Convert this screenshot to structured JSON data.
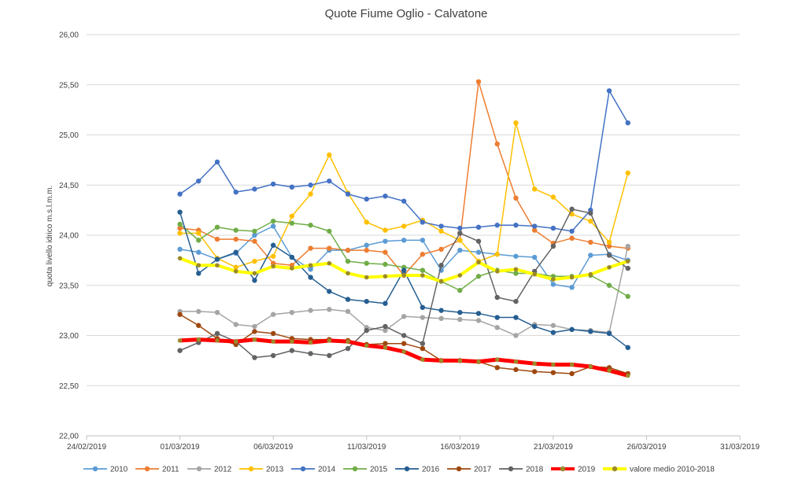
{
  "chart_data": {
    "type": "line",
    "title": "Quote Fiume Oglio - Calvatone",
    "xlabel": "",
    "ylabel": "quota livello idrico m.s.l.m.m.",
    "ylim": [
      22.0,
      26.0
    ],
    "yticks": [
      "22,00",
      "22,50",
      "23,00",
      "23,50",
      "24,00",
      "24,50",
      "25,00",
      "25,50",
      "26,00"
    ],
    "xticks": [
      "24/02/2019",
      "01/03/2019",
      "06/03/2019",
      "11/03/2019",
      "16/03/2019",
      "21/03/2019",
      "26/03/2019",
      "31/03/2019"
    ],
    "grid": true,
    "legend_position": "bottom",
    "x": [
      "01/03/2019",
      "02/03/2019",
      "03/03/2019",
      "04/03/2019",
      "05/03/2019",
      "06/03/2019",
      "07/03/2019",
      "08/03/2019",
      "09/03/2019",
      "10/03/2019",
      "11/03/2019",
      "12/03/2019",
      "13/03/2019",
      "14/03/2019",
      "15/03/2019",
      "16/03/2019",
      "17/03/2019",
      "18/03/2019",
      "19/03/2019",
      "20/03/2019",
      "21/03/2019",
      "22/03/2019",
      "23/03/2019",
      "24/03/2019",
      "25/03/2019"
    ],
    "series": [
      {
        "name": "2010",
        "color": "#5B9BD5",
        "width": 1.5,
        "values": [
          23.86,
          23.83,
          23.76,
          23.82,
          24.0,
          24.09,
          23.78,
          23.66,
          23.85,
          23.85,
          23.9,
          23.94,
          23.95,
          23.95,
          23.65,
          23.85,
          23.83,
          23.81,
          23.79,
          23.78,
          23.51,
          23.48,
          23.8,
          23.81,
          23.75
        ]
      },
      {
        "name": "2011",
        "color": "#ED7D31",
        "width": 1.5,
        "values": [
          24.07,
          24.05,
          23.96,
          23.96,
          23.94,
          23.72,
          23.7,
          23.87,
          23.87,
          23.85,
          23.85,
          23.83,
          23.6,
          23.81,
          23.86,
          23.95,
          25.53,
          24.91,
          24.37,
          24.05,
          23.92,
          23.97,
          23.93,
          23.89,
          23.87
        ]
      },
      {
        "name": "2012",
        "color": "#A5A5A5",
        "width": 1.5,
        "values": [
          23.24,
          23.24,
          23.23,
          23.11,
          23.09,
          23.21,
          23.23,
          23.25,
          23.26,
          23.24,
          23.08,
          23.05,
          23.19,
          23.18,
          23.17,
          23.16,
          23.15,
          23.08,
          23.0,
          23.11,
          23.1,
          23.06,
          23.05,
          23.03,
          23.89
        ]
      },
      {
        "name": "2013",
        "color": "#FFC000",
        "width": 1.5,
        "values": [
          24.02,
          24.02,
          23.77,
          23.68,
          23.74,
          23.79,
          24.19,
          24.41,
          24.8,
          24.42,
          24.13,
          24.05,
          24.09,
          24.15,
          24.04,
          23.95,
          23.74,
          23.81,
          25.12,
          24.46,
          24.38,
          24.21,
          24.14,
          23.93,
          24.62
        ]
      },
      {
        "name": "2014",
        "color": "#4472C4",
        "width": 1.5,
        "values": [
          24.41,
          24.54,
          24.73,
          24.43,
          24.46,
          24.51,
          24.48,
          24.5,
          24.54,
          24.41,
          24.36,
          24.39,
          24.34,
          24.13,
          24.09,
          24.07,
          24.08,
          24.1,
          24.1,
          24.09,
          24.07,
          24.04,
          24.25,
          25.44,
          25.12
        ]
      },
      {
        "name": "2015",
        "color": "#70AD47",
        "width": 1.5,
        "values": [
          24.11,
          23.95,
          24.08,
          24.05,
          24.04,
          24.14,
          24.12,
          24.1,
          24.04,
          23.74,
          23.72,
          23.71,
          23.68,
          23.65,
          23.54,
          23.45,
          23.59,
          23.65,
          23.62,
          23.62,
          23.59,
          23.59,
          23.6,
          23.5,
          23.39
        ]
      },
      {
        "name": "2016",
        "color": "#255E91",
        "width": 1.5,
        "values": [
          24.23,
          23.62,
          23.76,
          23.83,
          23.55,
          23.9,
          23.78,
          23.58,
          23.44,
          23.36,
          23.34,
          23.32,
          23.65,
          23.28,
          23.25,
          23.23,
          23.22,
          23.18,
          23.18,
          23.09,
          23.03,
          23.06,
          23.04,
          23.02,
          22.88
        ]
      },
      {
        "name": "2017",
        "color": "#9E480E",
        "width": 1.5,
        "values": [
          23.21,
          23.1,
          22.97,
          22.91,
          23.04,
          23.02,
          22.97,
          22.96,
          22.96,
          22.95,
          22.91,
          22.92,
          22.92,
          22.87,
          22.75,
          22.75,
          22.74,
          22.68,
          22.66,
          22.64,
          22.63,
          22.62,
          22.69,
          22.68,
          22.62
        ]
      },
      {
        "name": "2018",
        "color": "#636363",
        "width": 1.5,
        "values": [
          22.85,
          22.93,
          23.02,
          22.94,
          22.78,
          22.8,
          22.85,
          22.82,
          22.8,
          22.87,
          23.05,
          23.09,
          23.0,
          22.92,
          23.7,
          24.02,
          23.94,
          23.38,
          23.34,
          23.64,
          23.89,
          24.26,
          24.22,
          23.8,
          23.67
        ]
      },
      {
        "name": "2019",
        "color": "#FF0000",
        "width": 5,
        "values": [
          22.95,
          22.96,
          22.95,
          22.94,
          22.96,
          22.94,
          22.94,
          22.93,
          22.95,
          22.94,
          22.9,
          22.88,
          22.84,
          22.76,
          22.75,
          22.75,
          22.74,
          22.76,
          22.74,
          22.72,
          22.71,
          22.71,
          22.69,
          22.65,
          22.6
        ]
      },
      {
        "name": "valore medio 2010-2018",
        "color": "#FFFF00",
        "width": 4,
        "values": [
          23.77,
          23.7,
          23.7,
          23.64,
          23.62,
          23.69,
          23.67,
          23.7,
          23.72,
          23.62,
          23.58,
          23.59,
          23.6,
          23.6,
          23.54,
          23.6,
          23.73,
          23.64,
          23.66,
          23.61,
          23.56,
          23.58,
          23.61,
          23.68,
          23.74
        ]
      }
    ]
  }
}
